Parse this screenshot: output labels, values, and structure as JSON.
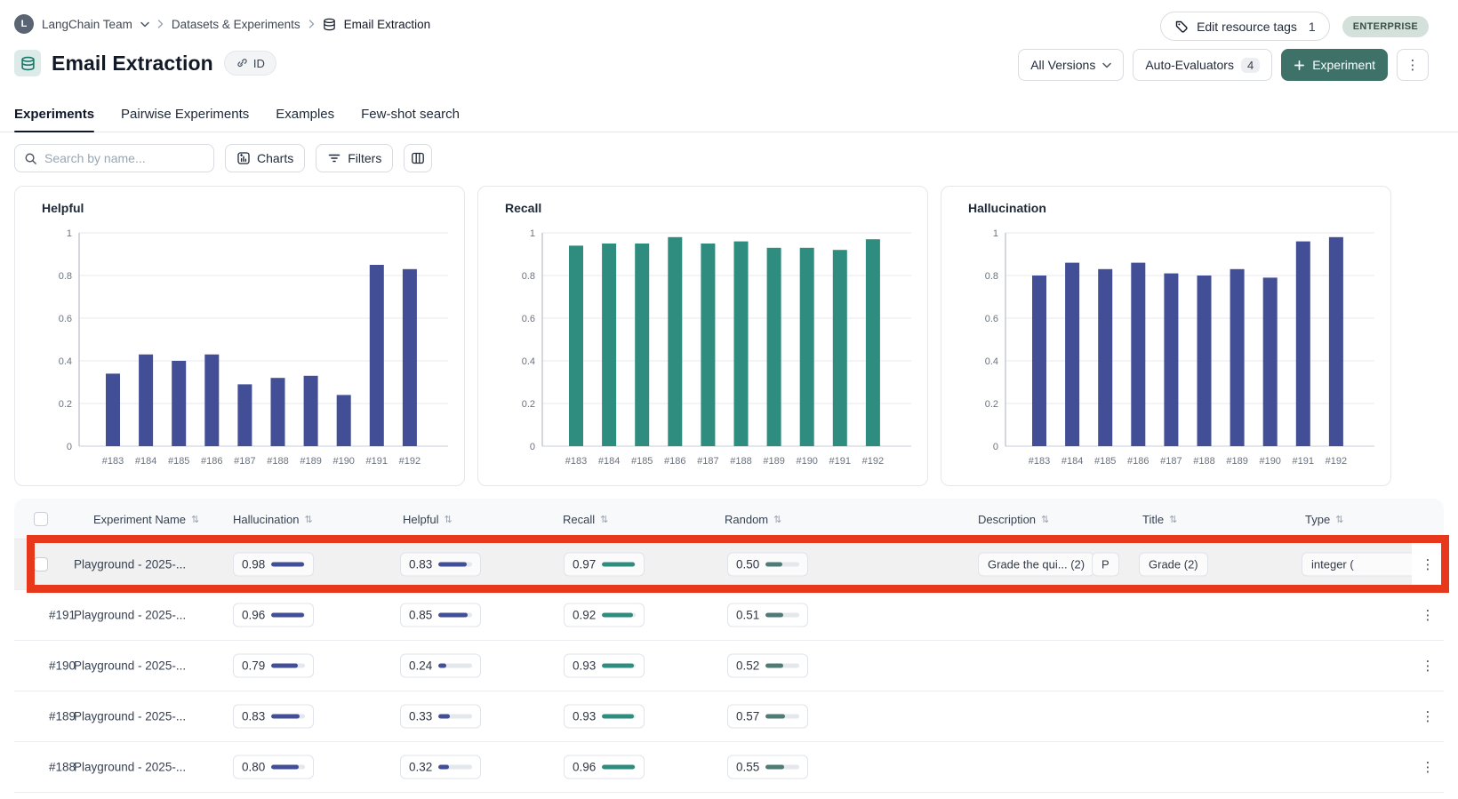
{
  "breadcrumb": {
    "avatar_letter": "L",
    "team": "LangChain Team",
    "section": "Datasets & Experiments",
    "page": "Email Extraction"
  },
  "page_header": {
    "title": "Email Extraction",
    "id_button": "ID",
    "edit_resource_tags": "Edit resource tags",
    "edit_resource_tags_count": "1",
    "plan_badge": "ENTERPRISE",
    "all_versions": "All Versions",
    "auto_evaluators": "Auto-Evaluators",
    "auto_evaluators_count": "4",
    "new_experiment": "Experiment"
  },
  "tabs": {
    "items": [
      {
        "label": "Experiments",
        "active": true
      },
      {
        "label": "Pairwise Experiments",
        "active": false
      },
      {
        "label": "Examples",
        "active": false
      },
      {
        "label": "Few-shot search",
        "active": false
      }
    ]
  },
  "toolbar": {
    "search_placeholder": "Search by name...",
    "charts": "Charts",
    "filters": "Filters"
  },
  "chart_data": [
    {
      "type": "bar",
      "title": "Helpful",
      "color": "#424e96",
      "categories": [
        "#183",
        "#184",
        "#185",
        "#186",
        "#187",
        "#188",
        "#189",
        "#190",
        "#191",
        "#192"
      ],
      "values": [
        0.34,
        0.43,
        0.4,
        0.43,
        0.29,
        0.32,
        0.33,
        0.24,
        0.85,
        0.83
      ],
      "xlabel": "",
      "ylabel": "",
      "ylim": [
        0,
        1
      ],
      "yticks": [
        0,
        0.2,
        0.4,
        0.6,
        0.8,
        1
      ],
      "grid": true,
      "legend": "none"
    },
    {
      "type": "bar",
      "title": "Recall",
      "color": "#2f8d80",
      "categories": [
        "#183",
        "#184",
        "#185",
        "#186",
        "#187",
        "#188",
        "#189",
        "#190",
        "#191",
        "#192"
      ],
      "values": [
        0.94,
        0.95,
        0.95,
        0.98,
        0.95,
        0.96,
        0.93,
        0.93,
        0.92,
        0.97
      ],
      "xlabel": "",
      "ylabel": "",
      "ylim": [
        0,
        1
      ],
      "yticks": [
        0,
        0.2,
        0.4,
        0.6,
        0.8,
        1
      ],
      "grid": true,
      "legend": "none"
    },
    {
      "type": "bar",
      "title": "Hallucination",
      "color": "#424e96",
      "categories": [
        "#183",
        "#184",
        "#185",
        "#186",
        "#187",
        "#188",
        "#189",
        "#190",
        "#191",
        "#192"
      ],
      "values": [
        0.8,
        0.86,
        0.83,
        0.86,
        0.81,
        0.8,
        0.83,
        0.79,
        0.96,
        0.98
      ],
      "xlabel": "",
      "ylabel": "",
      "ylim": [
        0,
        1
      ],
      "yticks": [
        0,
        0.2,
        0.4,
        0.6,
        0.8,
        1
      ],
      "grid": true,
      "legend": "none"
    }
  ],
  "table": {
    "columns": [
      {
        "key": "name",
        "label": "Experiment Name"
      },
      {
        "key": "hallucination",
        "label": "Hallucination"
      },
      {
        "key": "helpful",
        "label": "Helpful"
      },
      {
        "key": "recall",
        "label": "Recall"
      },
      {
        "key": "random",
        "label": "Random"
      },
      {
        "key": "description",
        "label": "Description"
      },
      {
        "key": "title_tag",
        "label": "Title"
      },
      {
        "key": "type_value",
        "label": "Type"
      }
    ],
    "metric_colors": {
      "hallucination": "#424e96",
      "helpful": "#424e96",
      "recall": "#2f8d80",
      "random": "#4f7b74"
    },
    "rows": [
      {
        "id": "",
        "has_checkbox": true,
        "highlighted": true,
        "name": "Playground - 2025-...",
        "hallucination": "0.98",
        "helpful": "0.83",
        "recall": "0.97",
        "random": "0.50",
        "description": "Grade the qui... (2)",
        "description_badge": "P",
        "title_tag": "Grade (2)",
        "type_value": "integer ("
      },
      {
        "id": "#191",
        "has_checkbox": false,
        "highlighted": false,
        "name": "Playground - 2025-...",
        "hallucination": "0.96",
        "helpful": "0.85",
        "recall": "0.92",
        "random": "0.51"
      },
      {
        "id": "#190",
        "has_checkbox": false,
        "highlighted": false,
        "name": "Playground - 2025-...",
        "hallucination": "0.79",
        "helpful": "0.24",
        "recall": "0.93",
        "random": "0.52"
      },
      {
        "id": "#189",
        "has_checkbox": false,
        "highlighted": false,
        "name": "Playground - 2025-...",
        "hallucination": "0.83",
        "helpful": "0.33",
        "recall": "0.93",
        "random": "0.57"
      },
      {
        "id": "#188",
        "has_checkbox": false,
        "highlighted": false,
        "name": "Playground - 2025-...",
        "hallucination": "0.80",
        "helpful": "0.32",
        "recall": "0.96",
        "random": "0.55"
      }
    ]
  },
  "annotation": {
    "highlight_color": "#e8381b"
  }
}
